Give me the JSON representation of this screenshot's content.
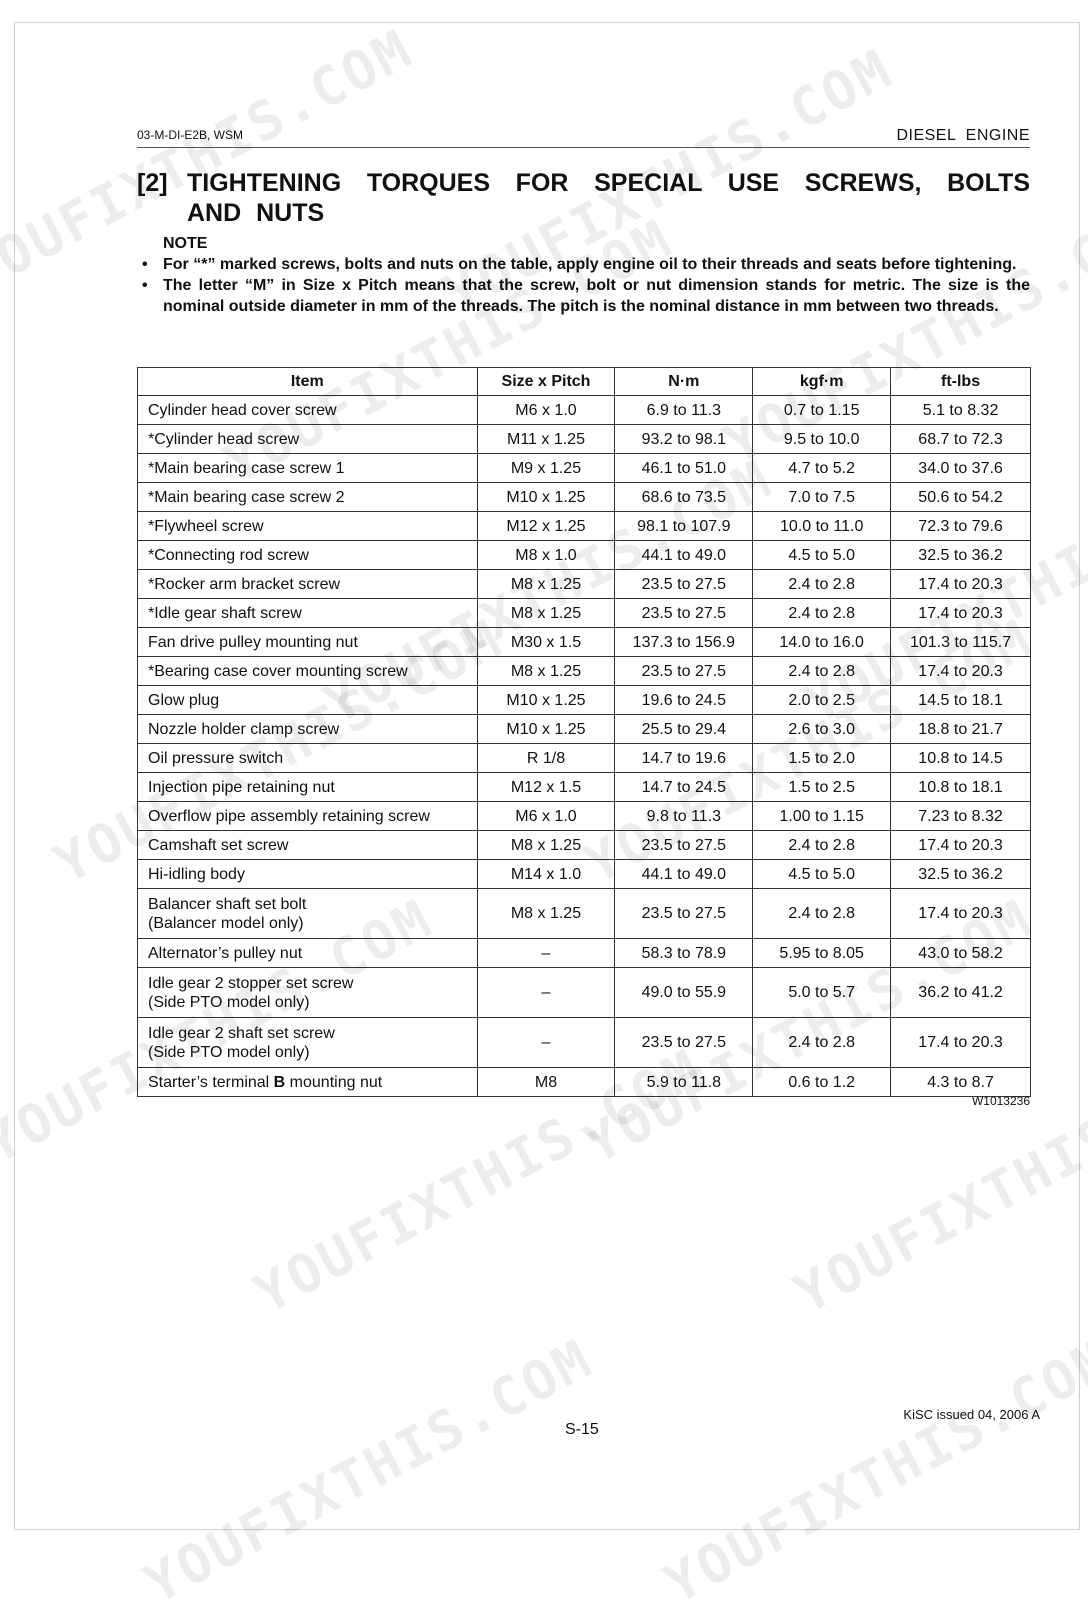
{
  "header": {
    "doc_code": "03-M-DI-E2B, WSM",
    "section": "DIESEL  ENGINE"
  },
  "title": {
    "number": "[2]",
    "text": "TIGHTENING TORQUES FOR SPECIAL USE SCREWS, BOLTS AND NUTS"
  },
  "note": {
    "heading": "NOTE",
    "bullets": [
      "For “*” marked screws, bolts and nuts on the table, apply engine oil to their threads and seats before tightening.",
      "The letter “M” in Size x Pitch means that the screw, bolt or nut dimension stands for metric.  The size is the nominal outside diameter in mm of the threads.  The pitch is the nominal distance in mm between two threads."
    ]
  },
  "table": {
    "columns": [
      "Item",
      "Size x Pitch",
      "N·m",
      "kgf·m",
      "ft-lbs"
    ],
    "rows": [
      {
        "item": "Cylinder head cover screw",
        "size": "M6 x 1.0",
        "nm": "6.9 to 11.3",
        "kgfm": "0.7 to 1.15",
        "ftlbs": "5.1 to 8.32"
      },
      {
        "item": "*Cylinder head screw",
        "size": "M11 x 1.25",
        "nm": "93.2 to 98.1",
        "kgfm": "9.5 to 10.0",
        "ftlbs": "68.7 to 72.3"
      },
      {
        "item": "*Main bearing case screw 1",
        "size": "M9 x 1.25",
        "nm": "46.1 to 51.0",
        "kgfm": "4.7 to 5.2",
        "ftlbs": "34.0 to 37.6"
      },
      {
        "item": "*Main bearing case screw 2",
        "size": "M10 x 1.25",
        "nm": "68.6 to 73.5",
        "kgfm": "7.0 to 7.5",
        "ftlbs": "50.6 to 54.2"
      },
      {
        "item": "*Flywheel screw",
        "size": "M12 x 1.25",
        "nm": "98.1 to 107.9",
        "kgfm": "10.0 to 11.0",
        "ftlbs": "72.3 to 79.6"
      },
      {
        "item": "*Connecting rod screw",
        "size": "M8 x 1.0",
        "nm": "44.1 to 49.0",
        "kgfm": "4.5 to 5.0",
        "ftlbs": "32.5 to 36.2"
      },
      {
        "item": "*Rocker arm bracket screw",
        "size": "M8 x 1.25",
        "nm": "23.5 to 27.5",
        "kgfm": "2.4 to 2.8",
        "ftlbs": "17.4 to 20.3"
      },
      {
        "item": "*Idle gear shaft screw",
        "size": "M8 x 1.25",
        "nm": "23.5 to 27.5",
        "kgfm": "2.4 to 2.8",
        "ftlbs": "17.4 to 20.3"
      },
      {
        "item": "Fan drive pulley mounting nut",
        "size": "M30 x 1.5",
        "nm": "137.3 to 156.9",
        "kgfm": "14.0 to 16.0",
        "ftlbs": "101.3 to 115.7"
      },
      {
        "item": "*Bearing case cover mounting screw",
        "size": "M8 x 1.25",
        "nm": "23.5 to 27.5",
        "kgfm": "2.4 to 2.8",
        "ftlbs": "17.4 to 20.3"
      },
      {
        "item": "Glow plug",
        "size": "M10 x 1.25",
        "nm": "19.6 to 24.5",
        "kgfm": "2.0 to 2.5",
        "ftlbs": "14.5 to 18.1"
      },
      {
        "item": "Nozzle holder clamp screw",
        "size": "M10 x 1.25",
        "nm": "25.5 to 29.4",
        "kgfm": "2.6 to 3.0",
        "ftlbs": "18.8 to 21.7"
      },
      {
        "item": "Oil pressure switch",
        "size": "R 1/8",
        "nm": "14.7 to 19.6",
        "kgfm": "1.5 to 2.0",
        "ftlbs": "10.8 to 14.5"
      },
      {
        "item": "Injection pipe retaining nut",
        "size": "M12 x 1.5",
        "nm": "14.7 to 24.5",
        "kgfm": "1.5 to 2.5",
        "ftlbs": "10.8 to 18.1"
      },
      {
        "item": "Overflow pipe assembly retaining screw",
        "size": "M6 x 1.0",
        "nm": "9.8 to 11.3",
        "kgfm": "1.00 to 1.15",
        "ftlbs": "7.23 to 8.32"
      },
      {
        "item": "Camshaft set screw",
        "size": "M8 x 1.25",
        "nm": "23.5 to 27.5",
        "kgfm": "2.4 to 2.8",
        "ftlbs": "17.4 to 20.3"
      },
      {
        "item": "Hi-idling body",
        "size": "M14 x 1.0",
        "nm": "44.1 to 49.0",
        "kgfm": "4.5 to 5.0",
        "ftlbs": "32.5 to 36.2"
      },
      {
        "item": "Balancer shaft set bolt",
        "item_note": "(Balancer model only)",
        "size": "M8 x 1.25",
        "nm": "23.5 to 27.5",
        "kgfm": "2.4 to 2.8",
        "ftlbs": "17.4 to 20.3"
      },
      {
        "item": "Alternator’s pulley nut",
        "size": "–",
        "nm": "58.3 to 78.9",
        "kgfm": "5.95 to 8.05",
        "ftlbs": "43.0 to 58.2"
      },
      {
        "item": "Idle gear 2 stopper set screw",
        "item_note": "(Side PTO model only)",
        "size": "–",
        "nm": "49.0 to 55.9",
        "kgfm": "5.0 to 5.7",
        "ftlbs": "36.2 to 41.2"
      },
      {
        "item": "Idle gear 2 shaft set screw",
        "item_note": "(Side PTO model only)",
        "size": "–",
        "nm": "23.5 to 27.5",
        "kgfm": "2.4 to 2.8",
        "ftlbs": "17.4 to 20.3"
      },
      {
        "item": "Starter’s terminal ",
        "item_bold": "B",
        "item_after": " mounting nut",
        "size": "M8",
        "nm": "5.9 to 11.8",
        "kgfm": "0.6 to 1.2",
        "ftlbs": "4.3 to 8.7"
      }
    ]
  },
  "reference_code": "W1013236",
  "footer": {
    "page": "S-15",
    "issued": "KiSC issued 04, 2006 A"
  },
  "watermark": "YOUFIXTHIS.COM"
}
